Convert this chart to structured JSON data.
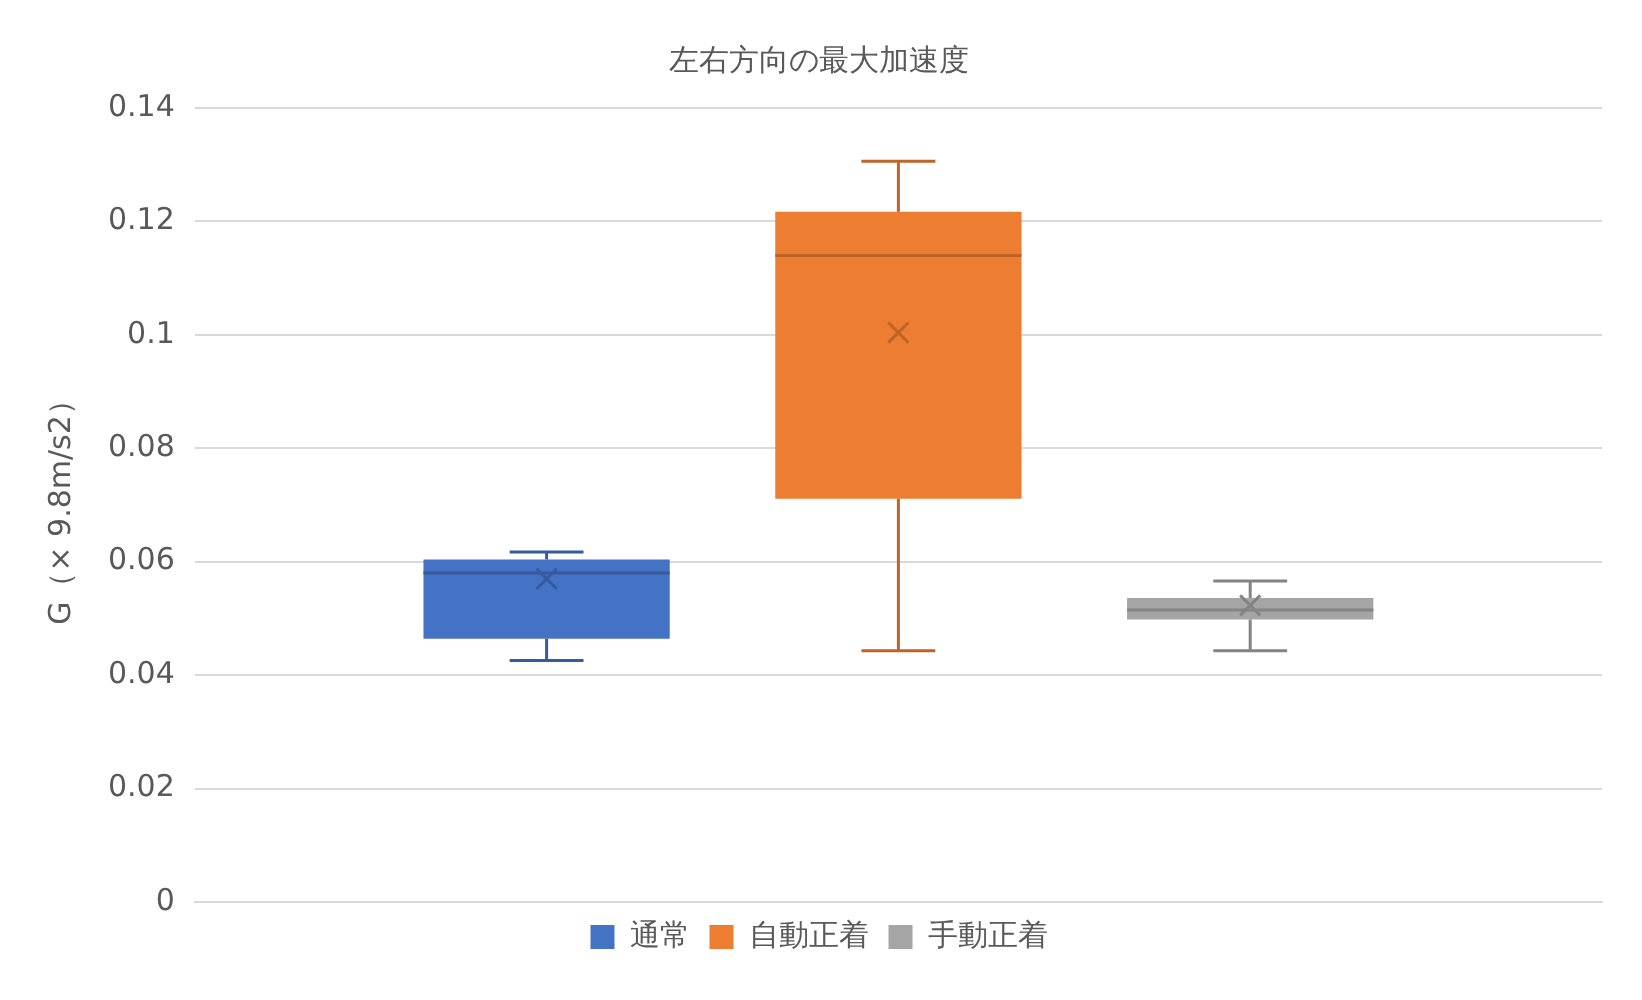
{
  "chart_data": {
    "type": "box",
    "title": "左右方向の最大加速度",
    "ylabel": "G（× 9.8m/s2）",
    "categories": [
      null
    ],
    "series": [
      {
        "name": "通常",
        "color": "#4472c4",
        "boxes": [
          {
            "low": 0.0426,
            "q1": 0.0464,
            "median": 0.058,
            "q3": 0.0604,
            "high": 0.0617,
            "mean": 0.057
          }
        ]
      },
      {
        "name": "自動正着",
        "color": "#ed7d31",
        "boxes": [
          {
            "low": 0.0443,
            "q1": 0.0711,
            "median": 0.114,
            "q3": 0.1217,
            "high": 0.1306,
            "mean": 0.1004
          }
        ]
      },
      {
        "name": "手動正着",
        "color": "#a5a5a5",
        "boxes": [
          {
            "low": 0.0443,
            "q1": 0.0498,
            "median": 0.0515,
            "q3": 0.0536,
            "high": 0.0566,
            "mean": 0.0523
          }
        ]
      }
    ],
    "ylim": [
      0,
      0.14
    ],
    "yticks": [
      0,
      0.02,
      0.04,
      0.06,
      0.08,
      0.1,
      0.12,
      0.14
    ],
    "grid": "y",
    "legend": "bottom",
    "tick_labels": "y"
  }
}
